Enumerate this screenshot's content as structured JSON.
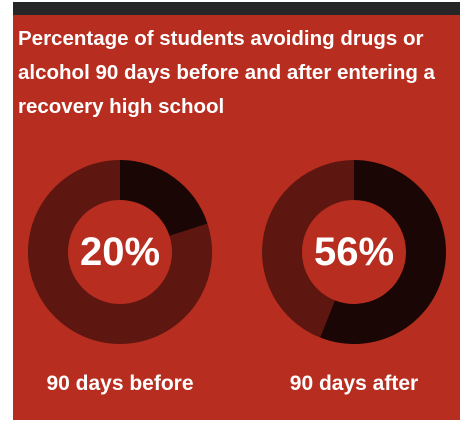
{
  "title": "Percentage of students avoiding drugs or alcohol 90 days before and after entering a recovery high school",
  "colors": {
    "background": "#b72d1f",
    "top_bar": "#262626",
    "filled_segment": "#1a0604",
    "remainder_segment": "#5e1610",
    "text": "#ffffff"
  },
  "chart_data": [
    {
      "type": "pie",
      "title": "",
      "label": "90 days before",
      "value": 20,
      "value_label": "20%",
      "max": 100
    },
    {
      "type": "pie",
      "title": "",
      "label": "90 days after",
      "value": 56,
      "value_label": "56%",
      "max": 100
    }
  ]
}
